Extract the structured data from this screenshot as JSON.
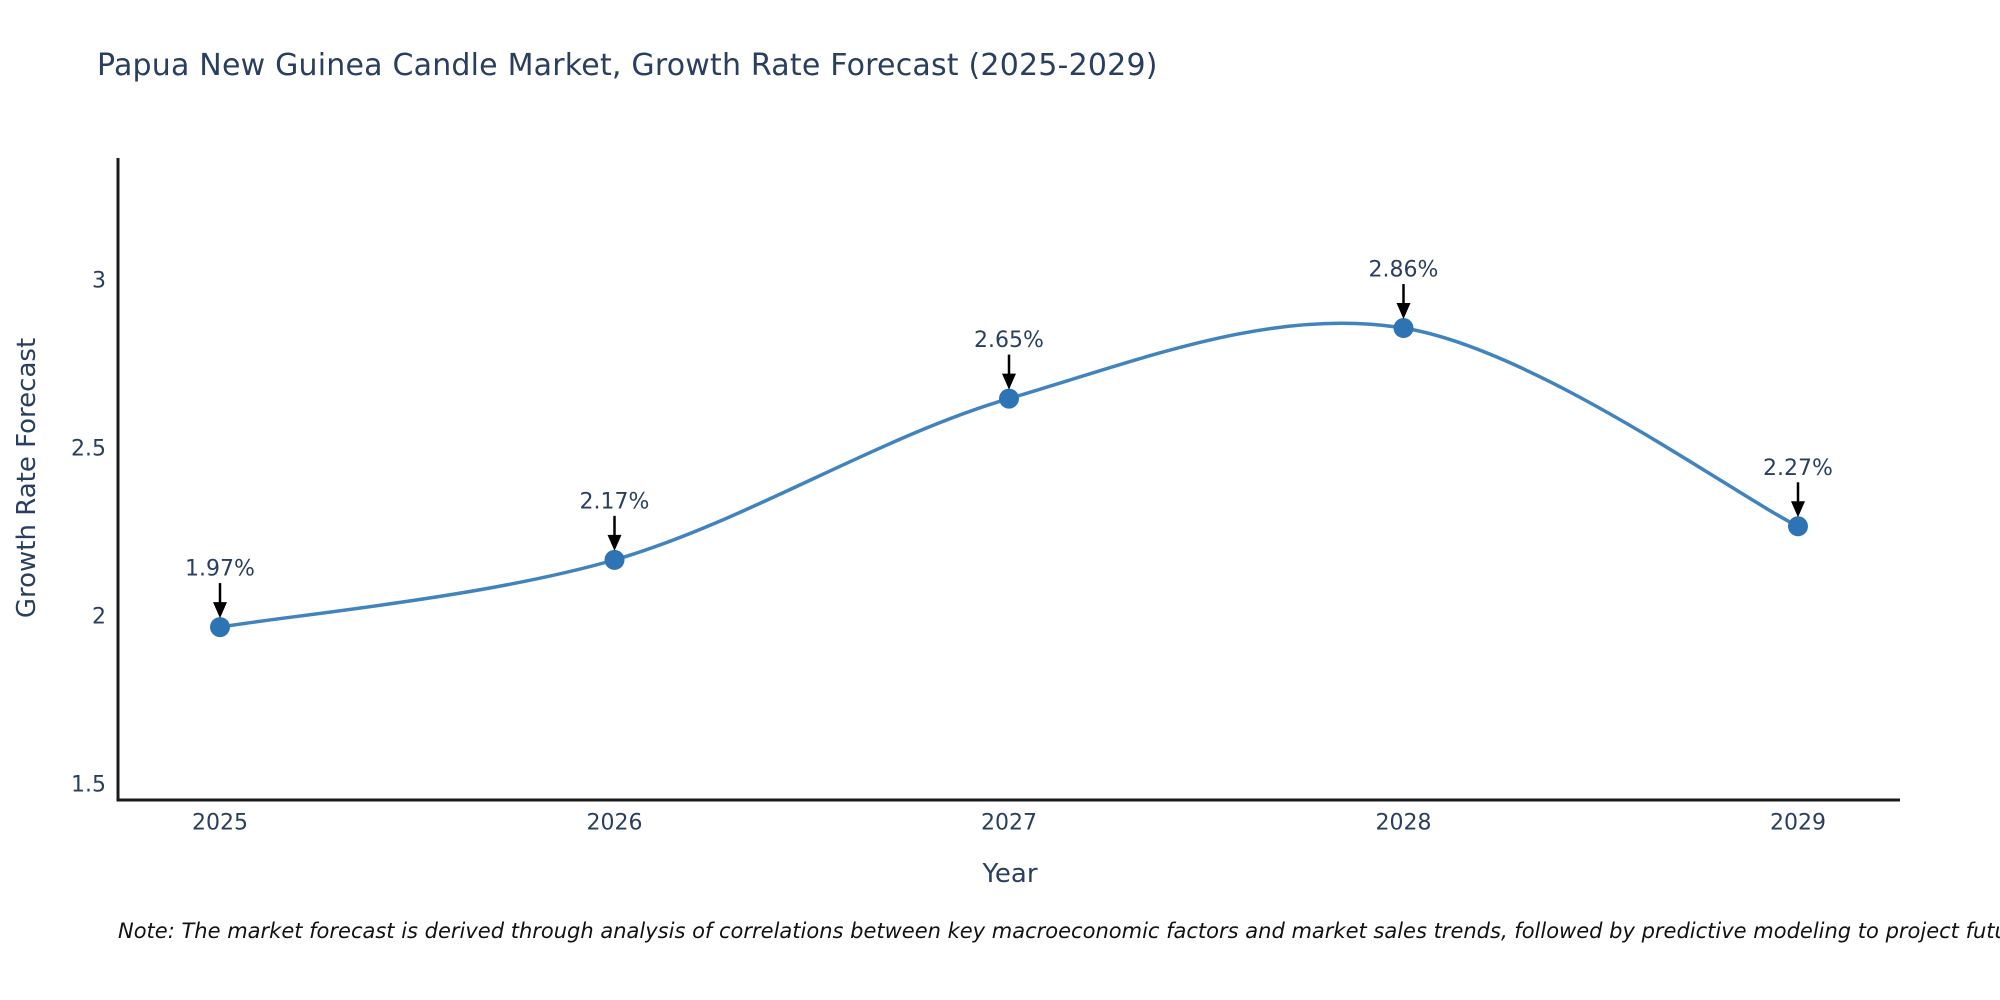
{
  "title": "Papua New Guinea Candle Market, Growth Rate Forecast (2025-2029)",
  "footnote": "Note: The market forecast is derived through analysis of correlations between key macroeconomic factors and market sales trends, followed by predictive modeling to project future sales",
  "chart_data": {
    "type": "line",
    "title": "Papua New Guinea Candle Market, Growth Rate Forecast (2025-2029)",
    "xlabel": "Year",
    "ylabel": "Growth Rate Forecast",
    "x": [
      2025,
      2026,
      2027,
      2028,
      2029
    ],
    "series": [
      {
        "name": "Growth Rate Forecast",
        "values": [
          1.97,
          2.17,
          2.65,
          2.86,
          2.27
        ]
      }
    ],
    "point_labels": [
      "1.97%",
      "2.17%",
      "2.65%",
      "2.86%",
      "2.27%"
    ],
    "xtick_labels": [
      "2025",
      "2026",
      "2027",
      "2028",
      "2029"
    ],
    "yticks": [
      1.5,
      2,
      2.5,
      3
    ],
    "ytick_labels": [
      "1.5",
      "2",
      "2.5",
      "3"
    ],
    "ylim": [
      1.45,
      3.37
    ],
    "grid": false,
    "legend": "none",
    "line_style": "spline",
    "colors": {
      "line": "#4183bd",
      "marker": "#2e74b5",
      "axis": "#1a1a1a",
      "tick_text": "#2a3f5f",
      "annotation_text": "#2a3f5f",
      "arrow": "#000000",
      "background": "#ffffff"
    }
  }
}
